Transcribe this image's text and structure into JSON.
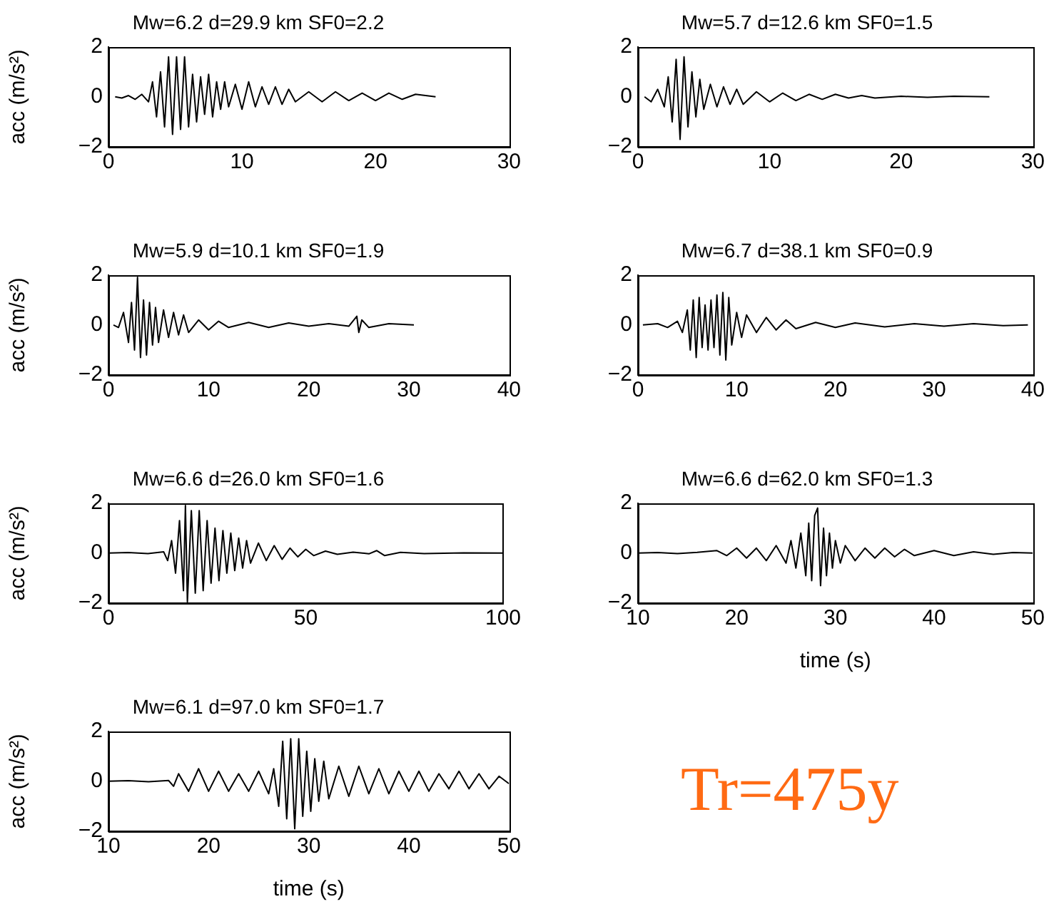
{
  "chart_data": [
    {
      "type": "line",
      "title": "Mw=6.2 d=29.9 km SF0=2.2",
      "ylabel": "acc (m/s²)",
      "color": "#000000",
      "xlim": [
        0,
        30
      ],
      "xticks": [
        0,
        10,
        20,
        30
      ],
      "ylim": [
        -2,
        2
      ],
      "yticks": [
        -2,
        0,
        2
      ],
      "x": [
        0.5,
        1,
        1.5,
        2,
        2.5,
        3,
        3.3,
        3.6,
        3.9,
        4.2,
        4.5,
        4.8,
        5.1,
        5.4,
        5.7,
        6,
        6.3,
        6.6,
        6.9,
        7.2,
        7.5,
        7.8,
        8.1,
        8.4,
        8.7,
        9,
        9.5,
        10,
        10.5,
        11,
        11.5,
        12,
        12.5,
        13,
        13.5,
        14,
        15,
        16,
        17,
        18,
        19,
        20,
        21,
        22,
        23,
        24.5
      ],
      "values": [
        0,
        -0.05,
        0.05,
        -0.1,
        0.1,
        -0.2,
        0.6,
        -0.8,
        1.0,
        -1.2,
        1.6,
        -1.5,
        1.6,
        -1.3,
        1.6,
        -1.2,
        0.9,
        -1.0,
        0.8,
        -0.7,
        0.9,
        -0.8,
        0.6,
        -0.5,
        0.6,
        -0.4,
        0.5,
        -0.5,
        0.6,
        -0.4,
        0.4,
        -0.3,
        0.4,
        -0.3,
        0.3,
        -0.2,
        0.2,
        -0.2,
        0.2,
        -0.15,
        0.15,
        -0.15,
        0.15,
        -0.1,
        0.1,
        0
      ]
    },
    {
      "type": "line",
      "title": "Mw=5.7 d=12.6 km SF0=1.5",
      "color": "#000000",
      "xlim": [
        0,
        30
      ],
      "xticks": [
        0,
        10,
        20,
        30
      ],
      "ylim": [
        -2,
        2
      ],
      "yticks": [
        -2,
        0,
        2
      ],
      "x": [
        0.5,
        1,
        1.5,
        2,
        2.3,
        2.6,
        2.9,
        3.2,
        3.5,
        3.8,
        4.1,
        4.4,
        4.7,
        5,
        5.5,
        6,
        6.5,
        7,
        7.5,
        8,
        9,
        10,
        11,
        12,
        13,
        14,
        15,
        16,
        17,
        18,
        20,
        22,
        24,
        26.7
      ],
      "values": [
        0,
        -0.2,
        0.3,
        -0.4,
        0.8,
        -1.0,
        1.5,
        -1.7,
        1.6,
        -1.2,
        1.0,
        -0.8,
        0.7,
        -0.5,
        0.5,
        -0.4,
        0.4,
        -0.3,
        0.3,
        -0.3,
        0.2,
        -0.2,
        0.15,
        -0.15,
        0.1,
        -0.1,
        0.1,
        -0.05,
        0.05,
        -0.05,
        0.02,
        -0.02,
        0.02,
        0
      ]
    },
    {
      "type": "line",
      "title": "Mw=5.9 d=10.1 km SF0=1.9",
      "ylabel": "acc (m/s²)",
      "color": "#000000",
      "xlim": [
        0,
        40
      ],
      "xticks": [
        0,
        10,
        20,
        30,
        40
      ],
      "ylim": [
        -2,
        2
      ],
      "yticks": [
        -2,
        0,
        2
      ],
      "x": [
        0.5,
        1,
        1.5,
        2,
        2.3,
        2.6,
        2.9,
        3.2,
        3.5,
        3.8,
        4.1,
        4.4,
        4.7,
        5,
        5.5,
        6,
        6.5,
        7,
        7.5,
        8,
        9,
        10,
        11,
        12,
        14,
        16,
        18,
        20,
        22,
        24,
        24.8,
        25,
        25.3,
        26,
        28,
        30.5
      ],
      "values": [
        0,
        -0.1,
        0.5,
        -0.7,
        0.9,
        -1.0,
        1.9,
        -1.3,
        1.0,
        -1.2,
        0.9,
        -0.8,
        0.7,
        -0.7,
        0.6,
        -0.5,
        0.5,
        -0.4,
        0.4,
        -0.3,
        0.2,
        -0.2,
        0.15,
        -0.1,
        0.1,
        -0.1,
        0.08,
        -0.05,
        0.05,
        -0.05,
        0.35,
        -0.3,
        0.2,
        -0.1,
        0.05,
        0
      ]
    },
    {
      "type": "line",
      "title": "Mw=6.7 d=38.1 km SF0=0.9",
      "color": "#000000",
      "xlim": [
        0,
        40
      ],
      "xticks": [
        0,
        10,
        20,
        30,
        40
      ],
      "ylim": [
        -2,
        2
      ],
      "yticks": [
        -2,
        0,
        2
      ],
      "x": [
        0.5,
        2,
        3,
        4,
        4.5,
        5,
        5.3,
        5.6,
        5.9,
        6.2,
        6.5,
        6.8,
        7.1,
        7.4,
        7.7,
        8,
        8.3,
        8.6,
        8.9,
        9.2,
        9.5,
        10,
        10.5,
        11,
        12,
        13,
        14,
        15,
        16,
        18,
        20,
        22,
        25,
        28,
        31,
        34,
        37,
        39.5
      ],
      "values": [
        0,
        0.05,
        -0.1,
        0.15,
        -0.3,
        0.6,
        -1.0,
        1.0,
        -1.3,
        1.1,
        -0.9,
        0.8,
        -1.0,
        1.0,
        -0.9,
        1.2,
        -1.2,
        1.3,
        -1.4,
        1.1,
        -0.8,
        0.5,
        -0.5,
        0.4,
        -0.3,
        0.3,
        -0.2,
        0.2,
        -0.15,
        0.1,
        -0.1,
        0.08,
        -0.08,
        0.05,
        -0.05,
        0.05,
        -0.03,
        0
      ]
    },
    {
      "type": "line",
      "title": "Mw=6.6 d=26.0 km SF0=1.6",
      "ylabel": "acc (m/s²)",
      "color": "#000000",
      "xlim": [
        0,
        100
      ],
      "xticks": [
        0,
        50,
        100
      ],
      "ylim": [
        -2,
        2
      ],
      "yticks": [
        -2,
        0,
        2
      ],
      "x": [
        0,
        5,
        10,
        14,
        15,
        16,
        17,
        18,
        19,
        19.5,
        20,
        21,
        22,
        23,
        24,
        25,
        26,
        27,
        28,
        29,
        30,
        31,
        32,
        33,
        34,
        35,
        36,
        38,
        40,
        42,
        44,
        46,
        48,
        50,
        52,
        55,
        58,
        62,
        66,
        68,
        70,
        74,
        80,
        90,
        100
      ],
      "values": [
        0,
        0.02,
        -0.02,
        0.05,
        -0.3,
        0.5,
        -0.8,
        1.3,
        -1.5,
        1.9,
        -1.95,
        1.7,
        -1.6,
        1.7,
        -1.5,
        1.3,
        -1.2,
        1.0,
        -1.1,
        0.9,
        -0.8,
        0.8,
        -0.7,
        0.6,
        -0.6,
        0.5,
        -0.4,
        0.4,
        -0.3,
        0.3,
        -0.25,
        0.2,
        -0.15,
        0.15,
        -0.1,
        0.08,
        -0.05,
        0.04,
        -0.03,
        0.1,
        -0.1,
        0.03,
        -0.02,
        0.01,
        0
      ]
    },
    {
      "type": "line",
      "title": "Mw=6.6 d=62.0 km SF0=1.3",
      "xlabel": "time (s)",
      "color": "#000000",
      "xlim": [
        10,
        50
      ],
      "xticks": [
        10,
        20,
        30,
        40,
        50
      ],
      "ylim": [
        -2,
        2
      ],
      "yticks": [
        -2,
        0,
        2
      ],
      "x": [
        10,
        12,
        14,
        16,
        18,
        19,
        20,
        21,
        22,
        23,
        24,
        25,
        25.5,
        26,
        26.5,
        27,
        27.3,
        27.6,
        27.9,
        28.2,
        28.5,
        28.8,
        29.1,
        29.4,
        29.7,
        30,
        30.5,
        31,
        32,
        33,
        34,
        35,
        36,
        37,
        38,
        40,
        42,
        44,
        46,
        48,
        50
      ],
      "values": [
        0,
        0.02,
        -0.02,
        0.03,
        0.1,
        -0.1,
        0.2,
        -0.2,
        0.2,
        -0.3,
        0.3,
        -0.4,
        0.5,
        -0.6,
        0.8,
        -0.9,
        1.2,
        -1.1,
        1.5,
        1.8,
        -1.3,
        1.0,
        -0.9,
        0.8,
        -0.6,
        0.5,
        -0.4,
        0.3,
        -0.3,
        0.2,
        -0.2,
        0.2,
        -0.15,
        0.15,
        -0.1,
        0.1,
        -0.1,
        0.05,
        -0.05,
        0.02,
        0
      ]
    },
    {
      "type": "line",
      "title": "Mw=6.1 d=97.0 km SF0=1.7",
      "xlabel": "time (s)",
      "ylabel": "acc (m/s²)",
      "color": "#000000",
      "xlim": [
        10,
        50
      ],
      "xticks": [
        10,
        20,
        30,
        40,
        50
      ],
      "ylim": [
        -2,
        2
      ],
      "yticks": [
        -2,
        0,
        2
      ],
      "x": [
        10,
        12,
        14,
        16,
        16.5,
        17,
        18,
        19,
        20,
        21,
        22,
        23,
        24,
        25,
        26,
        26.5,
        27,
        27.4,
        27.8,
        28.2,
        28.6,
        29,
        29.4,
        29.8,
        30.2,
        30.6,
        31,
        31.5,
        32,
        33,
        34,
        35,
        36,
        37,
        38,
        39,
        40,
        41,
        42,
        43,
        44,
        45,
        46,
        47,
        48,
        49,
        50
      ],
      "values": [
        0,
        0.02,
        -0.02,
        0.03,
        -0.2,
        0.3,
        -0.4,
        0.5,
        -0.4,
        0.4,
        -0.4,
        0.3,
        -0.4,
        0.4,
        -0.5,
        0.5,
        -1.0,
        1.6,
        -1.5,
        1.7,
        -1.9,
        1.7,
        -1.4,
        1.2,
        -1.2,
        0.9,
        -0.8,
        0.8,
        -0.7,
        0.6,
        -0.6,
        0.6,
        -0.5,
        0.5,
        -0.5,
        0.4,
        -0.4,
        0.4,
        -0.4,
        0.3,
        -0.3,
        0.4,
        -0.3,
        0.3,
        -0.3,
        0.2,
        -0.1
      ]
    },
    {
      "type": "other",
      "annotations": [
        "Tr=475y"
      ],
      "color": "#ff6a13"
    }
  ]
}
